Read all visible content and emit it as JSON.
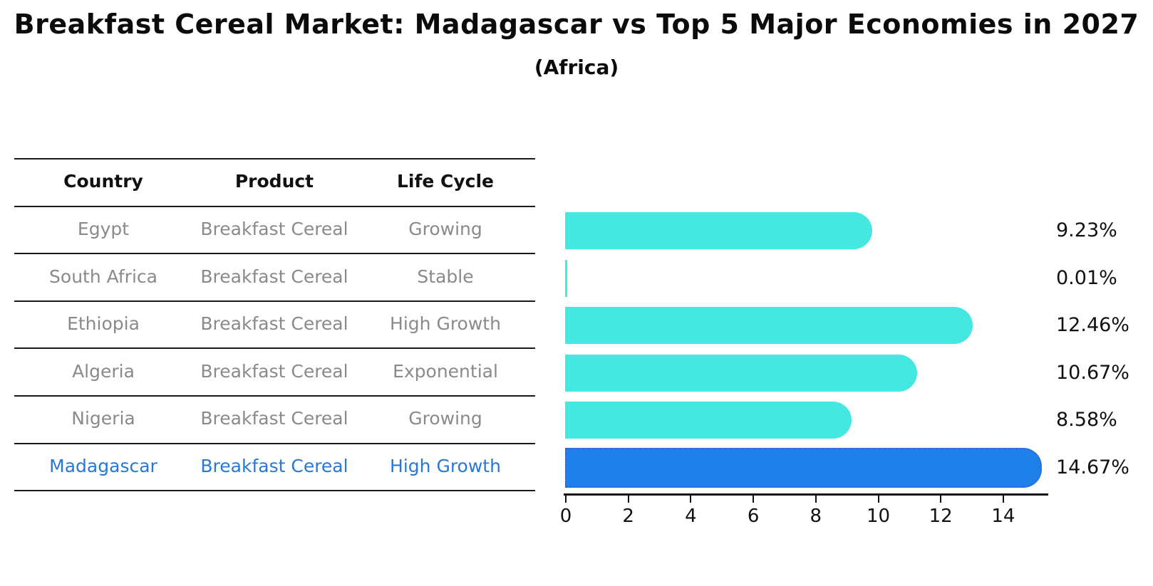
{
  "title": "Breakfast Cereal Market: Madagascar vs Top 5 Major Economies in 2027",
  "subtitle": "(Africa)",
  "table": {
    "headers": [
      "Country",
      "Product",
      "Life Cycle"
    ],
    "rows": [
      {
        "country": "Egypt",
        "product": "Breakfast Cereal",
        "life_cycle": "Growing",
        "highlighted": false
      },
      {
        "country": "South Africa",
        "product": "Breakfast Cereal",
        "life_cycle": "Stable",
        "highlighted": false
      },
      {
        "country": "Ethiopia",
        "product": "Breakfast Cereal",
        "life_cycle": "High Growth",
        "highlighted": false
      },
      {
        "country": "Algeria",
        "product": "Breakfast Cereal",
        "life_cycle": "Exponential",
        "highlighted": false
      },
      {
        "country": "Nigeria",
        "product": "Breakfast Cereal",
        "life_cycle": "Growing",
        "highlighted": false
      },
      {
        "country": "Madagascar",
        "product": "Breakfast Cereal",
        "life_cycle": "High Growth",
        "highlighted": true
      }
    ]
  },
  "chart_data": {
    "type": "bar",
    "orientation": "horizontal",
    "title": "Breakfast Cereal Market: Madagascar vs Top 5 Major Economies in 2027",
    "subtitle": "(Africa)",
    "categories": [
      "Egypt",
      "South Africa",
      "Ethiopia",
      "Algeria",
      "Nigeria",
      "Madagascar"
    ],
    "values": [
      9.23,
      0.01,
      12.46,
      10.67,
      8.58,
      14.67
    ],
    "value_labels": [
      "9.23%",
      "0.01%",
      "12.46%",
      "10.67%",
      "8.58%",
      "14.67%"
    ],
    "xlabel": "",
    "ylabel": "",
    "xlim": [
      0,
      15.4
    ],
    "xticks": [
      "0",
      "2",
      "4",
      "6",
      "8",
      "10",
      "12",
      "14"
    ],
    "grid": false,
    "legend": false,
    "highlight_index": 5
  },
  "colors": {
    "bar_default": "#45e8e0",
    "bar_highlight": "#1e80e8",
    "bar_highlight_border": "#2f65d4",
    "row_text": "#8a8a8a",
    "highlight_text": "#2878d6",
    "header_text": "#111111",
    "rule": "#1a1a1a",
    "value_text": "#111111",
    "axis": "#111111"
  }
}
